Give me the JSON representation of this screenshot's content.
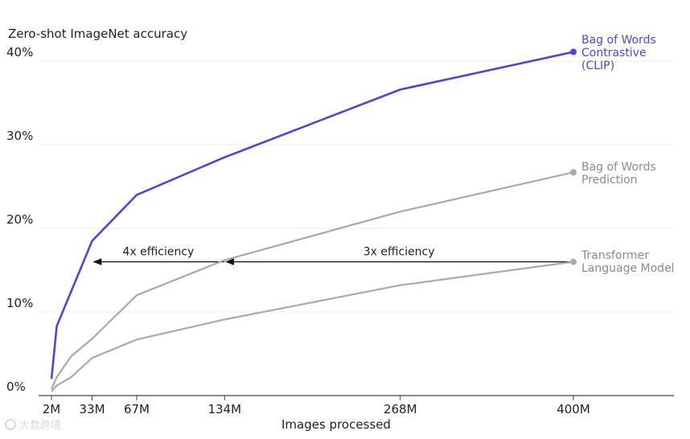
{
  "chart_data": {
    "type": "line",
    "ylabel": "Zero-shot ImageNet accuracy",
    "xlabel": "Images processed",
    "ylim": [
      0,
      42
    ],
    "y_ticks": [
      0,
      10,
      20,
      30,
      40
    ],
    "y_tick_labels": [
      "0%",
      "10%",
      "20%",
      "30%",
      "40%"
    ],
    "x_ticks": [
      2,
      33,
      67,
      134,
      268,
      400
    ],
    "x_tick_labels": [
      "2M",
      "33M",
      "67M",
      "134M",
      "268M",
      "400M"
    ],
    "grid": true,
    "series": [
      {
        "name": "Bag of Words Contrastive (CLIP)",
        "label_lines": [
          "Bag of Words",
          "Contrastive",
          "(CLIP)"
        ],
        "color": "#5b3fd9",
        "x": [
          2,
          3,
          6,
          33,
          67,
          134,
          268,
          400
        ],
        "y": [
          2.0,
          3.5,
          8.3,
          18.5,
          24.0,
          28.5,
          36.6,
          41.1
        ]
      },
      {
        "name": "Bag of Words Prediction",
        "label_lines": [
          "Bag of Words",
          "Prediction"
        ],
        "color": "#a9a8b3",
        "x": [
          2,
          6,
          17,
          33,
          67,
          134,
          268,
          400
        ],
        "y": [
          0.8,
          2.2,
          4.7,
          6.8,
          12.0,
          16.2,
          22.0,
          26.7
        ]
      },
      {
        "name": "Transformer Language Model",
        "label_lines": [
          "Transformer",
          "Language Model"
        ],
        "color": "#a9a8b3",
        "x": [
          2,
          6,
          17,
          33,
          67,
          134,
          268,
          400
        ],
        "y": [
          0.5,
          1.2,
          2.2,
          4.5,
          6.7,
          9.1,
          13.2,
          16.0
        ]
      }
    ],
    "annotations": [
      {
        "text": "4x efficiency",
        "from_x": 134,
        "to_x": 33,
        "y": 16.0
      },
      {
        "text": "3x efficiency",
        "from_x": 400,
        "to_x": 134,
        "y": 16.0
      }
    ]
  },
  "watermark": {
    "text": "大数跨境"
  }
}
